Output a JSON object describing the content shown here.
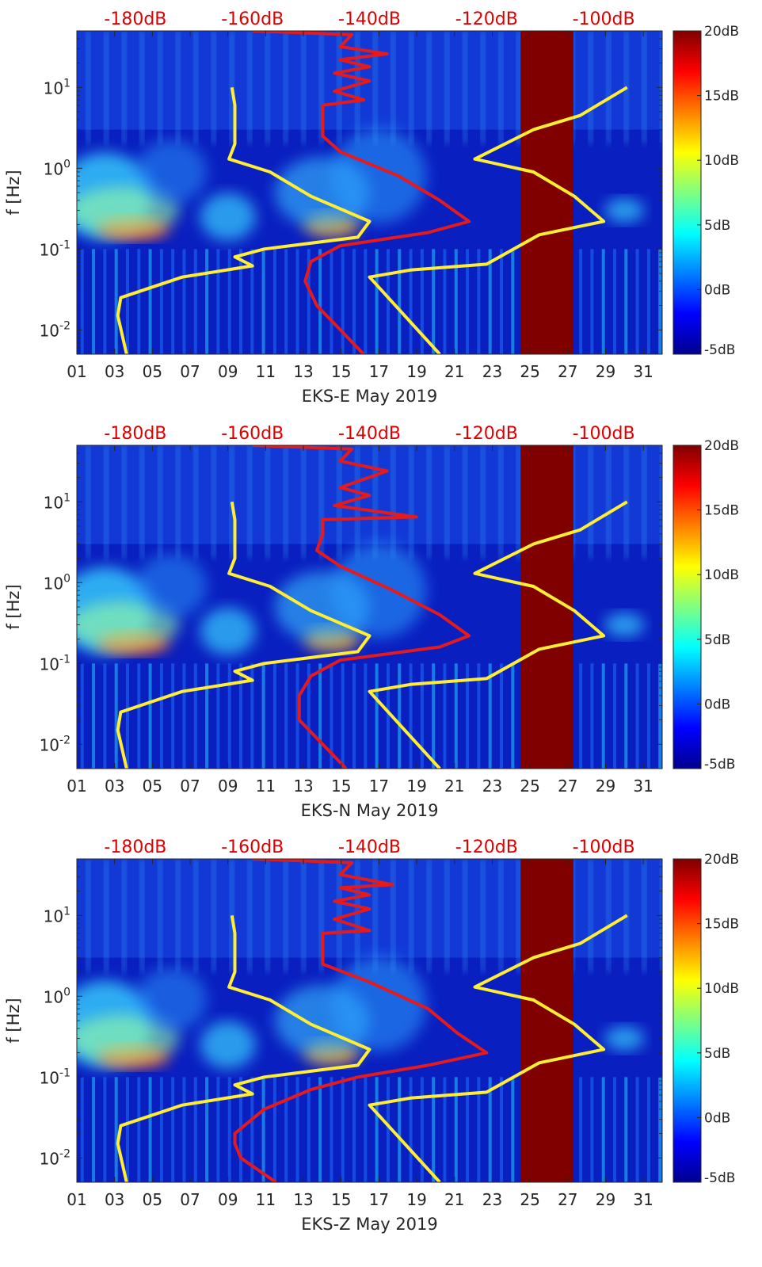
{
  "chart_data": [
    {
      "type": "heatmap",
      "title": "EKS-E spectrogram",
      "xlabel": "EKS-E May 2019",
      "ylabel": "f [Hz]",
      "x_ticks": [
        "01",
        "03",
        "05",
        "07",
        "09",
        "11",
        "13",
        "15",
        "17",
        "19",
        "21",
        "23",
        "25",
        "27",
        "29",
        "31"
      ],
      "y_ticks": [
        "10^{-2}",
        "10^{-1}",
        "10^{0}",
        "10^{1}"
      ],
      "ylim_hz": [
        0.005,
        50
      ],
      "xlim_days": [
        1,
        32
      ],
      "top_axis_ticks": [
        "-180dB",
        "-160dB",
        "-140dB",
        "-120dB",
        "-100dB"
      ],
      "top_axis_range_db": [
        -190,
        -90
      ],
      "colorbar_ticks": [
        "20dB",
        "15dB",
        "10dB",
        "5dB",
        "0dB",
        "-5dB"
      ],
      "colorbar_range_db": [
        -5,
        20
      ],
      "saturated_days": [
        24.5,
        27.3
      ],
      "series": [
        {
          "name": "yellow PSD curve (top-axis dB vs f)",
          "color": "#ffee33",
          "values": [
            [
              -181.5,
              0.005
            ],
            [
              -183,
              0.015
            ],
            [
              -182.5,
              0.025
            ],
            [
              -172,
              0.045
            ],
            [
              -160,
              0.062
            ],
            [
              -163,
              0.08
            ],
            [
              -158,
              0.1
            ],
            [
              -142,
              0.14
            ],
            [
              -140,
              0.22
            ],
            [
              -150,
              0.45
            ],
            [
              -157,
              0.9
            ],
            [
              -164,
              1.3
            ],
            [
              -163,
              2.0
            ],
            [
              -163,
              6.0
            ],
            [
              -163.5,
              10.0
            ]
          ]
        },
        {
          "name": "yellow PSD curve 2",
          "color": "#ffee33",
          "values": [
            [
              -128,
              0.005
            ],
            [
              -140,
              0.045
            ],
            [
              -133,
              0.055
            ],
            [
              -120,
              0.065
            ],
            [
              -111,
              0.15
            ],
            [
              -100,
              0.22
            ],
            [
              -105,
              0.45
            ],
            [
              -112,
              0.9
            ],
            [
              -122,
              1.3
            ],
            [
              -112,
              3.0
            ],
            [
              -104,
              4.5
            ],
            [
              -96,
              10.0
            ]
          ]
        },
        {
          "name": "red PSD curve",
          "color": "#e41a1c",
          "values": [
            [
              -141,
              0.005
            ],
            [
              -145,
              0.01
            ],
            [
              -149,
              0.02
            ],
            [
              -151,
              0.04
            ],
            [
              -150,
              0.07
            ],
            [
              -145,
              0.11
            ],
            [
              -130,
              0.16
            ],
            [
              -123,
              0.22
            ],
            [
              -128,
              0.4
            ],
            [
              -135,
              0.8
            ],
            [
              -145,
              1.6
            ],
            [
              -148,
              2.5
            ],
            [
              -148,
              4.0
            ],
            [
              -148,
              6.0
            ],
            [
              -141,
              7.0
            ],
            [
              -146,
              9.0
            ],
            [
              -140,
              12.0
            ],
            [
              -146,
              15.0
            ],
            [
              -140,
              18.0
            ],
            [
              -145,
              22.0
            ],
            [
              -137,
              26.0
            ],
            [
              -145,
              32.0
            ],
            [
              -143,
              45.0
            ],
            [
              -160,
              50.0
            ]
          ]
        }
      ]
    },
    {
      "type": "heatmap",
      "title": "EKS-N spectrogram",
      "xlabel": "EKS-N May 2019",
      "ylabel": "f [Hz]",
      "x_ticks": [
        "01",
        "03",
        "05",
        "07",
        "09",
        "11",
        "13",
        "15",
        "17",
        "19",
        "21",
        "23",
        "25",
        "27",
        "29",
        "31"
      ],
      "y_ticks": [
        "10^{-2}",
        "10^{-1}",
        "10^{0}",
        "10^{1}"
      ],
      "ylim_hz": [
        0.005,
        50
      ],
      "xlim_days": [
        1,
        32
      ],
      "top_axis_ticks": [
        "-180dB",
        "-160dB",
        "-140dB",
        "-120dB",
        "-100dB"
      ],
      "top_axis_range_db": [
        -190,
        -90
      ],
      "colorbar_ticks": [
        "20dB",
        "15dB",
        "10dB",
        "5dB",
        "0dB",
        "-5dB"
      ],
      "colorbar_range_db": [
        -5,
        20
      ],
      "saturated_days": [
        24.5,
        27.3
      ],
      "series": [
        {
          "name": "yellow PSD curve (top-axis dB vs f)",
          "color": "#ffee33",
          "values": [
            [
              -181.5,
              0.005
            ],
            [
              -183,
              0.015
            ],
            [
              -182.5,
              0.025
            ],
            [
              -172,
              0.045
            ],
            [
              -160,
              0.062
            ],
            [
              -163,
              0.08
            ],
            [
              -158,
              0.1
            ],
            [
              -142,
              0.14
            ],
            [
              -140,
              0.22
            ],
            [
              -150,
              0.45
            ],
            [
              -157,
              0.9
            ],
            [
              -164,
              1.3
            ],
            [
              -163,
              2.0
            ],
            [
              -163,
              6.0
            ],
            [
              -163.5,
              10.0
            ]
          ]
        },
        {
          "name": "yellow PSD curve 2",
          "color": "#ffee33",
          "values": [
            [
              -128,
              0.005
            ],
            [
              -140,
              0.045
            ],
            [
              -133,
              0.055
            ],
            [
              -120,
              0.065
            ],
            [
              -111,
              0.15
            ],
            [
              -100,
              0.22
            ],
            [
              -105,
              0.45
            ],
            [
              -112,
              0.9
            ],
            [
              -122,
              1.3
            ],
            [
              -112,
              3.0
            ],
            [
              -104,
              4.5
            ],
            [
              -96,
              10.0
            ]
          ]
        },
        {
          "name": "red PSD curve",
          "color": "#e41a1c",
          "values": [
            [
              -144,
              0.005
            ],
            [
              -148,
              0.01
            ],
            [
              -152,
              0.02
            ],
            [
              -152,
              0.04
            ],
            [
              -150,
              0.07
            ],
            [
              -145,
              0.11
            ],
            [
              -128,
              0.16
            ],
            [
              -123,
              0.22
            ],
            [
              -128,
              0.4
            ],
            [
              -136,
              0.8
            ],
            [
              -145,
              1.6
            ],
            [
              -149,
              2.5
            ],
            [
              -148,
              4.0
            ],
            [
              -148,
              6.0
            ],
            [
              -132,
              6.5
            ],
            [
              -146,
              9.0
            ],
            [
              -140,
              12.0
            ],
            [
              -145,
              15.0
            ],
            [
              -137,
              24.0
            ],
            [
              -145,
              32.0
            ],
            [
              -143,
              45.0
            ],
            [
              -160,
              50.0
            ]
          ]
        }
      ]
    },
    {
      "type": "heatmap",
      "title": "EKS-Z spectrogram",
      "xlabel": "EKS-Z May 2019",
      "ylabel": "f [Hz]",
      "x_ticks": [
        "01",
        "03",
        "05",
        "07",
        "09",
        "11",
        "13",
        "15",
        "17",
        "19",
        "21",
        "23",
        "25",
        "27",
        "29",
        "31"
      ],
      "y_ticks": [
        "10^{-2}",
        "10^{-1}",
        "10^{0}",
        "10^{1}"
      ],
      "ylim_hz": [
        0.005,
        50
      ],
      "xlim_days": [
        1,
        32
      ],
      "top_axis_ticks": [
        "-180dB",
        "-160dB",
        "-140dB",
        "-120dB",
        "-100dB"
      ],
      "top_axis_range_db": [
        -190,
        -90
      ],
      "colorbar_ticks": [
        "20dB",
        "15dB",
        "10dB",
        "5dB",
        "0dB",
        "-5dB"
      ],
      "colorbar_range_db": [
        -5,
        20
      ],
      "saturated_days": [
        24.5,
        27.3
      ],
      "series": [
        {
          "name": "yellow PSD curve (top-axis dB vs f)",
          "color": "#ffee33",
          "values": [
            [
              -181.5,
              0.005
            ],
            [
              -183,
              0.015
            ],
            [
              -182.5,
              0.025
            ],
            [
              -172,
              0.045
            ],
            [
              -160,
              0.062
            ],
            [
              -163,
              0.08
            ],
            [
              -158,
              0.1
            ],
            [
              -142,
              0.14
            ],
            [
              -140,
              0.22
            ],
            [
              -150,
              0.45
            ],
            [
              -157,
              0.9
            ],
            [
              -164,
              1.3
            ],
            [
              -163,
              2.0
            ],
            [
              -163,
              6.0
            ],
            [
              -163.5,
              10.0
            ]
          ]
        },
        {
          "name": "yellow PSD curve 2",
          "color": "#ffee33",
          "values": [
            [
              -128,
              0.005
            ],
            [
              -140,
              0.045
            ],
            [
              -133,
              0.055
            ],
            [
              -120,
              0.065
            ],
            [
              -111,
              0.15
            ],
            [
              -100,
              0.22
            ],
            [
              -105,
              0.45
            ],
            [
              -112,
              0.9
            ],
            [
              -122,
              1.3
            ],
            [
              -112,
              3.0
            ],
            [
              -104,
              4.5
            ],
            [
              -96,
              10.0
            ]
          ]
        },
        {
          "name": "red PSD curve",
          "color": "#e41a1c",
          "values": [
            [
              -156,
              0.005
            ],
            [
              -162,
              0.01
            ],
            [
              -163,
              0.015
            ],
            [
              -163,
              0.02
            ],
            [
              -158,
              0.04
            ],
            [
              -150,
              0.07
            ],
            [
              -142,
              0.1
            ],
            [
              -130,
              0.14
            ],
            [
              -120,
              0.2
            ],
            [
              -125,
              0.35
            ],
            [
              -130,
              0.7
            ],
            [
              -140,
              1.5
            ],
            [
              -148,
              2.5
            ],
            [
              -148,
              4.0
            ],
            [
              -148,
              6.0
            ],
            [
              -140,
              6.5
            ],
            [
              -146,
              9.0
            ],
            [
              -140,
              12.0
            ],
            [
              -146,
              15.0
            ],
            [
              -140,
              18.0
            ],
            [
              -145,
              22.0
            ],
            [
              -136,
              24.0
            ],
            [
              -145,
              32.0
            ],
            [
              -143,
              45.0
            ],
            [
              -160,
              50.0
            ]
          ]
        }
      ]
    }
  ]
}
